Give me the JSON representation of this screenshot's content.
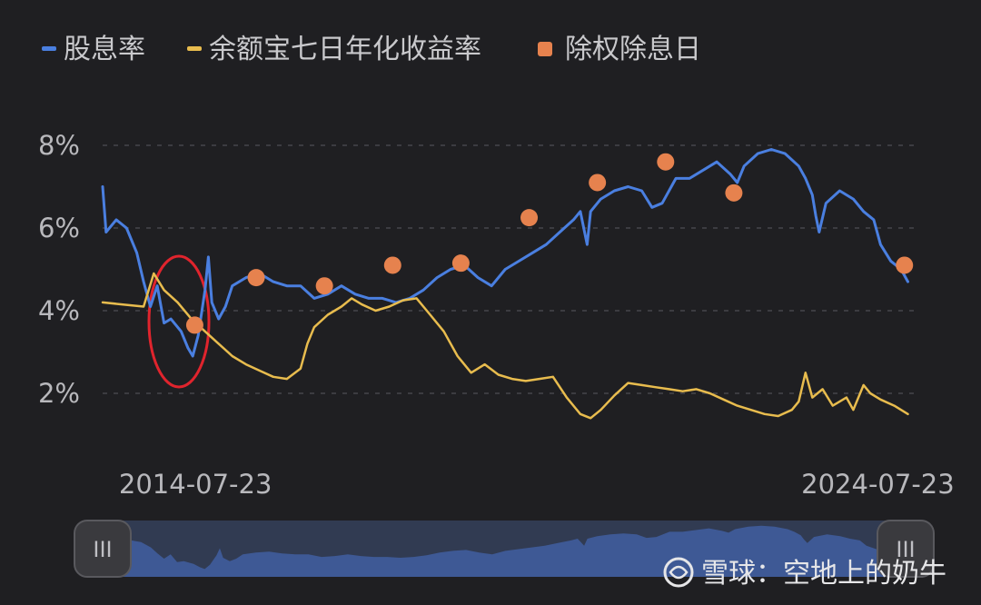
{
  "chart_data": {
    "type": "line",
    "legend_placement": "top-left",
    "grid": "horizontal dashed",
    "ylim": [
      1,
      9
    ],
    "y_ticks": [
      "8%",
      "6%",
      "4%",
      "2%"
    ],
    "y_tick_values": [
      8,
      6,
      4,
      2
    ],
    "x_ticks": [
      "2014-07-23",
      "2024-07-23"
    ],
    "x_tick_years": [
      2014.56,
      2024.56
    ],
    "xlim": [
      2013.2,
      2025.1
    ],
    "series": [
      {
        "name": "股息率",
        "kind": "line",
        "color": "#4a7fe0",
        "points": [
          [
            2013.2,
            7.0
          ],
          [
            2013.25,
            5.9
          ],
          [
            2013.4,
            6.2
          ],
          [
            2013.55,
            6.0
          ],
          [
            2013.7,
            5.4
          ],
          [
            2013.8,
            4.7
          ],
          [
            2013.9,
            4.1
          ],
          [
            2014.0,
            4.6
          ],
          [
            2014.1,
            3.7
          ],
          [
            2014.2,
            3.8
          ],
          [
            2014.35,
            3.5
          ],
          [
            2014.45,
            3.1
          ],
          [
            2014.52,
            2.9
          ],
          [
            2014.6,
            3.4
          ],
          [
            2014.7,
            4.5
          ],
          [
            2014.75,
            5.3
          ],
          [
            2014.8,
            4.2
          ],
          [
            2014.9,
            3.8
          ],
          [
            2015.0,
            4.1
          ],
          [
            2015.1,
            4.6
          ],
          [
            2015.3,
            4.8
          ],
          [
            2015.5,
            4.9
          ],
          [
            2015.7,
            4.7
          ],
          [
            2015.9,
            4.6
          ],
          [
            2016.1,
            4.6
          ],
          [
            2016.3,
            4.3
          ],
          [
            2016.5,
            4.4
          ],
          [
            2016.7,
            4.6
          ],
          [
            2016.9,
            4.4
          ],
          [
            2017.1,
            4.3
          ],
          [
            2017.3,
            4.3
          ],
          [
            2017.5,
            4.2
          ],
          [
            2017.7,
            4.3
          ],
          [
            2017.9,
            4.5
          ],
          [
            2018.1,
            4.8
          ],
          [
            2018.3,
            5.0
          ],
          [
            2018.5,
            5.1
          ],
          [
            2018.7,
            4.8
          ],
          [
            2018.9,
            4.6
          ],
          [
            2019.1,
            5.0
          ],
          [
            2019.3,
            5.2
          ],
          [
            2019.5,
            5.4
          ],
          [
            2019.7,
            5.6
          ],
          [
            2019.9,
            5.9
          ],
          [
            2020.1,
            6.2
          ],
          [
            2020.2,
            6.4
          ],
          [
            2020.3,
            5.6
          ],
          [
            2020.35,
            6.4
          ],
          [
            2020.5,
            6.7
          ],
          [
            2020.7,
            6.9
          ],
          [
            2020.9,
            7.0
          ],
          [
            2021.1,
            6.9
          ],
          [
            2021.25,
            6.5
          ],
          [
            2021.4,
            6.6
          ],
          [
            2021.6,
            7.2
          ],
          [
            2021.8,
            7.2
          ],
          [
            2022.0,
            7.4
          ],
          [
            2022.2,
            7.6
          ],
          [
            2022.4,
            7.3
          ],
          [
            2022.5,
            7.1
          ],
          [
            2022.6,
            7.5
          ],
          [
            2022.8,
            7.8
          ],
          [
            2023.0,
            7.9
          ],
          [
            2023.2,
            7.8
          ],
          [
            2023.4,
            7.5
          ],
          [
            2023.5,
            7.2
          ],
          [
            2023.6,
            6.8
          ],
          [
            2023.65,
            6.3
          ],
          [
            2023.7,
            5.9
          ],
          [
            2023.8,
            6.6
          ],
          [
            2024.0,
            6.9
          ],
          [
            2024.2,
            6.7
          ],
          [
            2024.35,
            6.4
          ],
          [
            2024.5,
            6.2
          ],
          [
            2024.6,
            5.6
          ],
          [
            2024.75,
            5.2
          ],
          [
            2024.9,
            5.0
          ],
          [
            2025.0,
            4.7
          ]
        ]
      },
      {
        "name": "余额宝七日年化收益率",
        "kind": "line",
        "color": "#e8bc4e",
        "points": [
          [
            2013.2,
            4.2
          ],
          [
            2013.5,
            4.15
          ],
          [
            2013.8,
            4.1
          ],
          [
            2013.95,
            4.9
          ],
          [
            2014.1,
            4.5
          ],
          [
            2014.3,
            4.2
          ],
          [
            2014.5,
            3.8
          ],
          [
            2014.7,
            3.5
          ],
          [
            2014.9,
            3.2
          ],
          [
            2015.1,
            2.9
          ],
          [
            2015.3,
            2.7
          ],
          [
            2015.5,
            2.55
          ],
          [
            2015.7,
            2.4
          ],
          [
            2015.9,
            2.35
          ],
          [
            2016.1,
            2.6
          ],
          [
            2016.2,
            3.2
          ],
          [
            2016.3,
            3.6
          ],
          [
            2016.5,
            3.9
          ],
          [
            2016.7,
            4.1
          ],
          [
            2016.85,
            4.3
          ],
          [
            2017.0,
            4.15
          ],
          [
            2017.2,
            4.0
          ],
          [
            2017.4,
            4.1
          ],
          [
            2017.6,
            4.25
          ],
          [
            2017.8,
            4.3
          ],
          [
            2018.0,
            3.9
          ],
          [
            2018.2,
            3.5
          ],
          [
            2018.4,
            2.9
          ],
          [
            2018.6,
            2.5
          ],
          [
            2018.8,
            2.7
          ],
          [
            2019.0,
            2.45
          ],
          [
            2019.2,
            2.35
          ],
          [
            2019.4,
            2.3
          ],
          [
            2019.6,
            2.35
          ],
          [
            2019.8,
            2.4
          ],
          [
            2020.0,
            1.9
          ],
          [
            2020.2,
            1.5
          ],
          [
            2020.35,
            1.4
          ],
          [
            2020.5,
            1.6
          ],
          [
            2020.7,
            1.95
          ],
          [
            2020.9,
            2.25
          ],
          [
            2021.1,
            2.2
          ],
          [
            2021.3,
            2.15
          ],
          [
            2021.5,
            2.1
          ],
          [
            2021.7,
            2.05
          ],
          [
            2021.9,
            2.1
          ],
          [
            2022.1,
            2.0
          ],
          [
            2022.3,
            1.85
          ],
          [
            2022.5,
            1.7
          ],
          [
            2022.7,
            1.6
          ],
          [
            2022.9,
            1.5
          ],
          [
            2023.1,
            1.45
          ],
          [
            2023.3,
            1.6
          ],
          [
            2023.4,
            1.8
          ],
          [
            2023.5,
            2.5
          ],
          [
            2023.6,
            1.9
          ],
          [
            2023.75,
            2.1
          ],
          [
            2023.9,
            1.7
          ],
          [
            2024.1,
            1.9
          ],
          [
            2024.2,
            1.6
          ],
          [
            2024.35,
            2.2
          ],
          [
            2024.45,
            2.0
          ],
          [
            2024.6,
            1.85
          ],
          [
            2024.8,
            1.7
          ],
          [
            2025.0,
            1.5
          ]
        ]
      },
      {
        "name": "除权除息日",
        "kind": "scatter",
        "color": "#e6824e",
        "points": [
          [
            2014.55,
            3.65
          ],
          [
            2015.45,
            4.8
          ],
          [
            2016.45,
            4.6
          ],
          [
            2017.45,
            5.1
          ],
          [
            2018.45,
            5.15
          ],
          [
            2019.45,
            6.25
          ],
          [
            2020.45,
            7.1
          ],
          [
            2021.45,
            7.6
          ],
          [
            2022.45,
            6.85
          ],
          [
            2024.95,
            5.1
          ]
        ]
      }
    ]
  },
  "watermark": {
    "text": "雪球：空地上的奶牛",
    "icon": "snowball-logo"
  },
  "slider": {
    "handle_glyph": "III"
  }
}
